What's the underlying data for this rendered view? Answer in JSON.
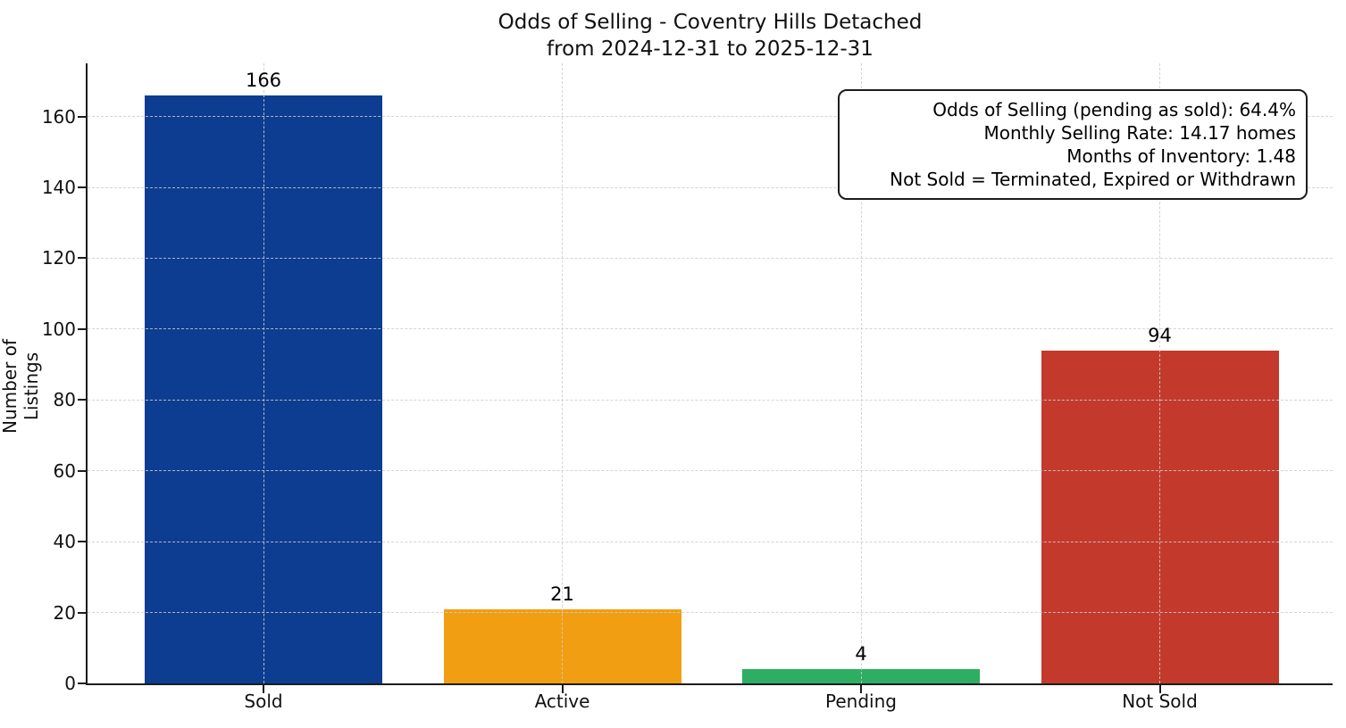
{
  "chart_data": {
    "type": "bar",
    "title_line1": "Odds of Selling - Coventry Hills Detached",
    "title_line2": "from 2024-12-31 to 2025-12-31",
    "ylabel": "Number of Listings",
    "xlabel": "",
    "categories": [
      "Sold",
      "Active",
      "Pending",
      "Not Sold"
    ],
    "values": [
      166,
      21,
      4,
      94
    ],
    "bar_colors": [
      "#0d3d91",
      "#f29e12",
      "#2eae62",
      "#c33a2c"
    ],
    "yticks": [
      0,
      20,
      40,
      60,
      80,
      100,
      120,
      140,
      160
    ],
    "ylim": [
      0,
      175
    ],
    "grid": "dashed, both axes, drawn over bars",
    "legend": "none",
    "annotation_box": {
      "position": "top-right",
      "lines": [
        "Odds of Selling (pending as sold): 64.4%",
        "Monthly Selling Rate: 14.17 homes",
        "Months of Inventory: 1.48",
        "Not Sold = Terminated, Expired or Withdrawn"
      ]
    }
  },
  "colors": {
    "background": "#ffffff",
    "spine": "#1c1c1c",
    "grid": "#cdcdcd",
    "text": "#111111",
    "bar_sold": "#0d3d91",
    "bar_active": "#f29e12",
    "bar_pending": "#2eae62",
    "bar_not_sold": "#c33a2c"
  }
}
